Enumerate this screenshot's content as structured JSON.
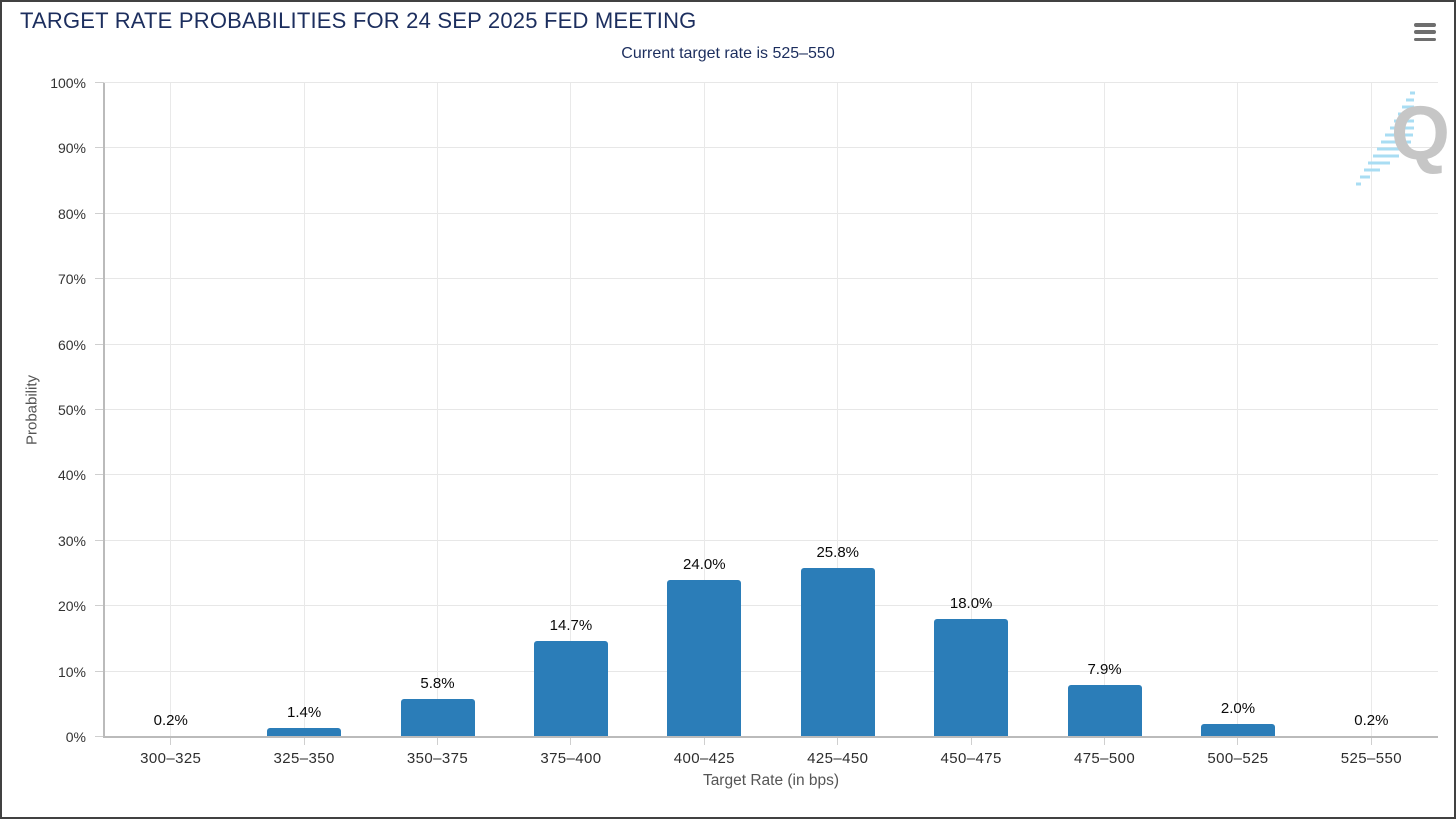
{
  "header": {
    "menu_icon": "hamburger-menu-icon"
  },
  "watermark": {
    "letter": "Q"
  },
  "colors": {
    "bar": "#2b7db8",
    "title": "#1c2e5e",
    "grid": "#e7e7e7",
    "axis": "#bbbbbb",
    "watermark": "#c6c6c6",
    "watermark_dash": "#a9ddf3"
  },
  "chart_data": {
    "type": "bar",
    "title": "TARGET RATE PROBABILITIES FOR 24 SEP 2025 FED MEETING",
    "subtitle": "Current target rate is 525–550",
    "categories": [
      "300–325",
      "325–350",
      "350–375",
      "375–400",
      "400–425",
      "425–450",
      "450–475",
      "475–500",
      "500–525",
      "525–550"
    ],
    "values": [
      0.2,
      1.4,
      5.8,
      14.7,
      24.0,
      25.8,
      18.0,
      7.9,
      2.0,
      0.2
    ],
    "labels": [
      "0.2%",
      "1.4%",
      "5.8%",
      "14.7%",
      "24.0%",
      "25.8%",
      "18.0%",
      "7.9%",
      "2.0%",
      "0.2%"
    ],
    "xlabel": "Target Rate (in bps)",
    "ylabel": "Probability",
    "ylim": [
      0,
      100
    ],
    "ytick_step": 10,
    "ytick_labels": [
      "0%",
      "10%",
      "20%",
      "30%",
      "40%",
      "50%",
      "60%",
      "70%",
      "80%",
      "90%",
      "100%"
    ],
    "grid": true,
    "legend": "none"
  }
}
